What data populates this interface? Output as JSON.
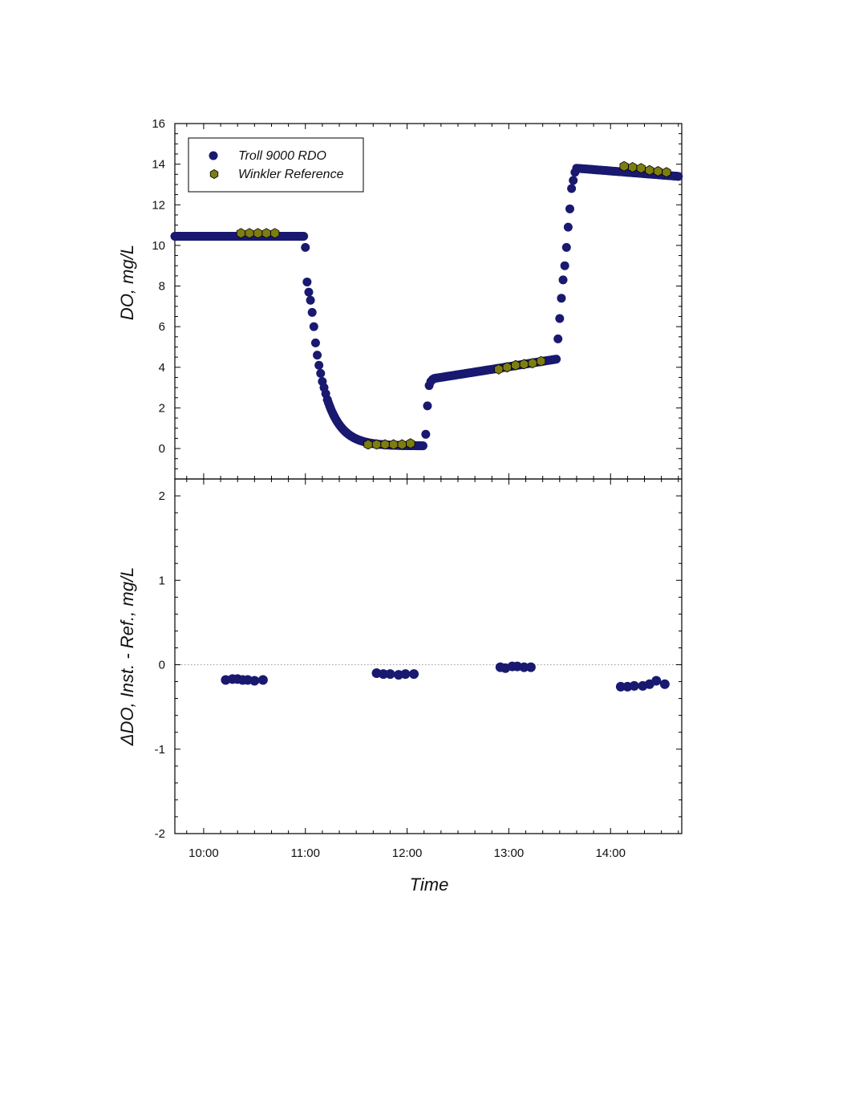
{
  "colors": {
    "troll": "#191970",
    "winkler": "#7d7d12",
    "zero_line": "#9a9a9a",
    "axes": "#000000"
  },
  "chart_data": [
    {
      "type": "scatter",
      "panel": "top",
      "ylabel": "DO, mg/L",
      "ylim": [
        -1.5,
        16
      ],
      "yticks": [
        0,
        2,
        4,
        6,
        8,
        10,
        12,
        14,
        16
      ],
      "xlim_minutes": [
        583,
        882
      ],
      "legend": {
        "placement": "top-left",
        "entries": [
          "Troll 9000 RDO",
          "Winkler Reference"
        ]
      },
      "series": [
        {
          "name": "Troll 9000 RDO",
          "marker": "circle",
          "segments": [
            {
              "kind": "flat",
              "t_start": 583,
              "t_end": 659,
              "y": 10.45
            },
            {
              "kind": "points",
              "t": [
                660,
                661,
                662,
                663,
                664,
                665,
                666,
                667,
                668,
                669,
                670,
                671,
                672,
                673
              ],
              "y": [
                9.9,
                8.2,
                7.7,
                7.3,
                6.7,
                6.0,
                5.2,
                4.6,
                4.1,
                3.7,
                3.3,
                3.0,
                2.7,
                2.4
              ]
            },
            {
              "kind": "decay",
              "t_start": 673,
              "t_end": 730,
              "y_start": 2.4,
              "y_end": 0.13,
              "tau": 9,
              "step": 0.6
            },
            {
              "kind": "points",
              "t": [
                731,
                732,
                733,
                734,
                735
              ],
              "y": [
                0.7,
                2.1,
                3.1,
                3.3,
                3.4
              ]
            },
            {
              "kind": "ramp",
              "t_start": 736,
              "t_end": 808,
              "y_start": 3.45,
              "y_end": 4.4,
              "step": 0.8
            },
            {
              "kind": "points",
              "t": [
                809,
                810,
                811,
                812,
                813,
                814,
                815,
                816,
                817,
                818,
                819
              ],
              "y": [
                5.4,
                6.4,
                7.4,
                8.3,
                9.0,
                9.9,
                10.9,
                11.8,
                12.8,
                13.2,
                13.6
              ]
            },
            {
              "kind": "ramp",
              "t_start": 820,
              "t_end": 880,
              "y_start": 13.8,
              "y_end": 13.4,
              "step": 0.8
            }
          ]
        },
        {
          "name": "Winkler Reference",
          "marker": "hexagon",
          "t": [
            622,
            627,
            632,
            637,
            642,
            697,
            702,
            707,
            712,
            717,
            722,
            774,
            779,
            784,
            789,
            794,
            799,
            848,
            853,
            858,
            863,
            868,
            873
          ],
          "y": [
            10.6,
            10.6,
            10.6,
            10.6,
            10.6,
            0.2,
            0.2,
            0.2,
            0.2,
            0.2,
            0.25,
            3.9,
            4.0,
            4.1,
            4.15,
            4.2,
            4.3,
            13.9,
            13.85,
            13.8,
            13.7,
            13.65,
            13.6
          ]
        }
      ]
    },
    {
      "type": "scatter",
      "panel": "bottom",
      "ylabel": "ΔDO, Inst. - Ref., mg/L",
      "xlabel": "Time",
      "ylim": [
        -2,
        2.2
      ],
      "yticks": [
        -2,
        -1,
        0,
        1,
        2
      ],
      "xlim_minutes": [
        583,
        882
      ],
      "xticks_minutes": [
        600,
        660,
        720,
        780,
        840
      ],
      "xtick_labels": [
        "10:00",
        "11:00",
        "12:00",
        "13:00",
        "14:00"
      ],
      "zero_line": true,
      "series": [
        {
          "name": "Troll 9000 RDO",
          "marker": "circle",
          "t": [
            613,
            617,
            620,
            623,
            626,
            630,
            635,
            702,
            706,
            710,
            715,
            719,
            724,
            775,
            778,
            782,
            785,
            789,
            793,
            846,
            850,
            854,
            859,
            863,
            867,
            872
          ],
          "y": [
            -0.18,
            -0.17,
            -0.17,
            -0.18,
            -0.18,
            -0.19,
            -0.18,
            -0.1,
            -0.11,
            -0.11,
            -0.12,
            -0.11,
            -0.11,
            -0.03,
            -0.04,
            -0.02,
            -0.02,
            -0.03,
            -0.03,
            -0.26,
            -0.26,
            -0.25,
            -0.25,
            -0.23,
            -0.19,
            -0.23
          ]
        }
      ]
    }
  ]
}
